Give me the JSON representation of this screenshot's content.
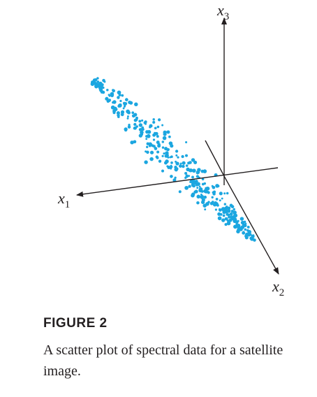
{
  "figure": {
    "label": "FIGURE 2",
    "caption": "A scatter plot of spectral data for a satellite image."
  },
  "axes": {
    "x1": {
      "letter": "x",
      "sub": "1"
    },
    "x2": {
      "letter": "x",
      "sub": "2"
    },
    "x3": {
      "letter": "x",
      "sub": "3"
    }
  },
  "colors": {
    "points": "#1ba6e0",
    "axes": "#231f20"
  }
}
